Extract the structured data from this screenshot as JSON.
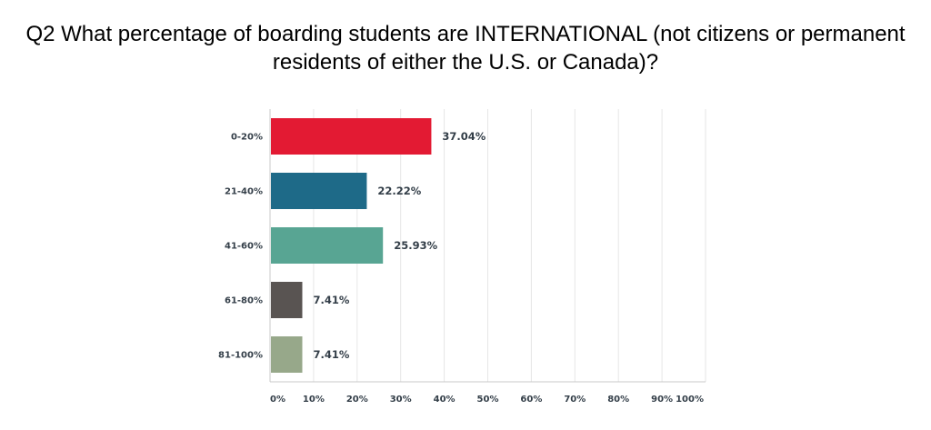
{
  "title": "Q2 What percentage of boarding students are INTERNATIONAL (not citizens or permanent residents of either the U.S. or Canada)?",
  "chart_data": {
    "type": "bar",
    "orientation": "horizontal",
    "title": "Q2 What percentage of boarding students are INTERNATIONAL (not citizens or permanent residents of either the U.S. or Canada)?",
    "categories": [
      "0-20%",
      "21-40%",
      "41-60%",
      "61-80%",
      "81-100%"
    ],
    "values": [
      37.04,
      22.22,
      25.93,
      7.41,
      7.41
    ],
    "value_labels": [
      "37.04%",
      "22.22%",
      "25.93%",
      "7.41%",
      "7.41%"
    ],
    "colors": [
      "#e31a33",
      "#1e6a88",
      "#58a593",
      "#595452",
      "#97a88a"
    ],
    "xlim": [
      0,
      100
    ],
    "x_ticks": [
      "0%",
      "10%",
      "20%",
      "30%",
      "40%",
      "50%",
      "60%",
      "70%",
      "80%",
      "90%",
      "100%"
    ],
    "grid": true,
    "legend": "none"
  }
}
